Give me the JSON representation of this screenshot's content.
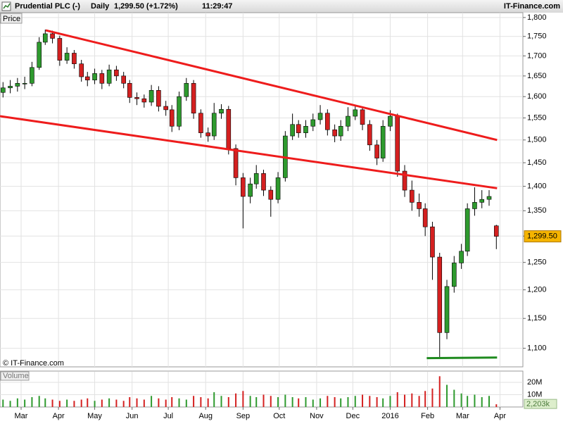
{
  "chart_data": {
    "type": "candlestick",
    "header": {
      "instrument": "Prudential PLC (-)",
      "period": "Daily",
      "quote": "1,299.50 (+1.72%)",
      "time": "11:29:47",
      "source": "IT-Finance.com"
    },
    "price_label": "Price",
    "copyright": "© IT-Finance.com",
    "volume_label": "Volume",
    "last_price_label": "1,299.50",
    "last_volume_label": "2,203k",
    "log_scale": true,
    "grid": true,
    "up_color": "#2e9a2e",
    "down_color": "#d42020",
    "xlim": [
      -17.5,
      416
    ],
    "xticks": [
      {
        "value": 0,
        "label": "Mar"
      },
      {
        "value": 31,
        "label": "Apr"
      },
      {
        "value": 61,
        "label": "May"
      },
      {
        "value": 92,
        "label": "Jun"
      },
      {
        "value": 122,
        "label": "Jul"
      },
      {
        "value": 153,
        "label": "Aug"
      },
      {
        "value": 184,
        "label": "Sep"
      },
      {
        "value": 214,
        "label": "Oct"
      },
      {
        "value": 245,
        "label": "Nov"
      },
      {
        "value": 275,
        "label": "Dec"
      },
      {
        "value": 306,
        "label": "2016"
      },
      {
        "value": 337,
        "label": "Feb"
      },
      {
        "value": 366,
        "label": "Mar"
      },
      {
        "value": 397,
        "label": "Apr"
      }
    ],
    "ylim": [
      1070,
      1813
    ],
    "yticks": [
      {
        "value": 1800,
        "label": "1,800"
      },
      {
        "value": 1750,
        "label": "1,750"
      },
      {
        "value": 1700,
        "label": "1,700"
      },
      {
        "value": 1650,
        "label": "1,650"
      },
      {
        "value": 1600,
        "label": "1,600"
      },
      {
        "value": 1550,
        "label": "1,550"
      },
      {
        "value": 1500,
        "label": "1,500"
      },
      {
        "value": 1450,
        "label": "1,450"
      },
      {
        "value": 1400,
        "label": "1,400"
      },
      {
        "value": 1350,
        "label": "1,350"
      },
      {
        "value": 1300,
        "label": "1,300"
      },
      {
        "value": 1250,
        "label": "1,250"
      },
      {
        "value": 1200,
        "label": "1,200"
      },
      {
        "value": 1150,
        "label": "1,150"
      },
      {
        "value": 1100,
        "label": "1,100"
      }
    ],
    "vlim": [
      0,
      28.6
    ],
    "vticks": [
      {
        "value": 20,
        "label": "20M"
      },
      {
        "value": 10,
        "label": "10M"
      }
    ],
    "x": [
      -15,
      -9,
      -3,
      3,
      9,
      15,
      20,
      26,
      32,
      38,
      44,
      50,
      55,
      61,
      67,
      73,
      79,
      85,
      90,
      96,
      102,
      108,
      114,
      120,
      125,
      131,
      137,
      143,
      149,
      155,
      160,
      166,
      172,
      178,
      184,
      190,
      195,
      201,
      207,
      213,
      219,
      225,
      230,
      236,
      242,
      248,
      254,
      260,
      265,
      271,
      277,
      283,
      289,
      295,
      300,
      306,
      312,
      318,
      324,
      330,
      335,
      341,
      347,
      353,
      359,
      365,
      370,
      376,
      382,
      388,
      394
    ],
    "open": [
      1610,
      1621,
      1625,
      1632,
      1632,
      1671,
      1735,
      1757,
      1745,
      1689,
      1707,
      1680,
      1648,
      1640,
      1656,
      1632,
      1665,
      1650,
      1632,
      1598,
      1595,
      1587,
      1615,
      1577,
      1569,
      1531,
      1600,
      1632,
      1561,
      1516,
      1509,
      1561,
      1570,
      1481,
      1418,
      1379,
      1405,
      1427,
      1392,
      1373,
      1418,
      1509,
      1535,
      1516,
      1531,
      1546,
      1561,
      1523,
      1509,
      1531,
      1554,
      1569,
      1535,
      1489,
      1460,
      1531,
      1554,
      1432,
      1392,
      1367,
      1354,
      1318,
      1260,
      1126,
      1206,
      1249,
      1271,
      1354,
      1367,
      1373,
      1320
    ],
    "high": [
      1635,
      1640,
      1645,
      1648,
      1685,
      1748,
      1768,
      1765,
      1752,
      1722,
      1715,
      1690,
      1660,
      1668,
      1665,
      1678,
      1675,
      1660,
      1640,
      1610,
      1605,
      1628,
      1625,
      1590,
      1580,
      1612,
      1645,
      1640,
      1570,
      1528,
      1585,
      1582,
      1578,
      1490,
      1428,
      1418,
      1445,
      1435,
      1400,
      1430,
      1520,
      1560,
      1545,
      1545,
      1560,
      1580,
      1570,
      1535,
      1545,
      1575,
      1580,
      1575,
      1545,
      1500,
      1545,
      1568,
      1560,
      1445,
      1412,
      1385,
      1365,
      1328,
      1268,
      1218,
      1262,
      1285,
      1365,
      1398,
      1392,
      1392,
      1322
    ],
    "low": [
      1598,
      1608,
      1612,
      1618,
      1625,
      1665,
      1728,
      1732,
      1675,
      1680,
      1668,
      1636,
      1625,
      1630,
      1618,
      1625,
      1638,
      1620,
      1585,
      1580,
      1574,
      1578,
      1565,
      1555,
      1518,
      1522,
      1590,
      1548,
      1505,
      1496,
      1500,
      1548,
      1468,
      1402,
      1315,
      1365,
      1395,
      1380,
      1338,
      1365,
      1410,
      1500,
      1505,
      1505,
      1520,
      1535,
      1510,
      1495,
      1498,
      1520,
      1545,
      1522,
      1476,
      1445,
      1452,
      1520,
      1420,
      1378,
      1350,
      1338,
      1300,
      1218,
      1083,
      1115,
      1195,
      1238,
      1262,
      1340,
      1355,
      1360,
      1275
    ],
    "close": [
      1621,
      1625,
      1632,
      1632,
      1671,
      1735,
      1757,
      1745,
      1689,
      1707,
      1680,
      1648,
      1640,
      1656,
      1632,
      1665,
      1650,
      1632,
      1598,
      1595,
      1587,
      1615,
      1577,
      1569,
      1531,
      1600,
      1632,
      1561,
      1516,
      1509,
      1561,
      1570,
      1481,
      1418,
      1379,
      1405,
      1427,
      1392,
      1373,
      1418,
      1509,
      1535,
      1516,
      1531,
      1546,
      1561,
      1523,
      1509,
      1531,
      1554,
      1569,
      1535,
      1489,
      1460,
      1531,
      1554,
      1432,
      1392,
      1367,
      1354,
      1318,
      1260,
      1126,
      1206,
      1249,
      1271,
      1354,
      1367,
      1373,
      1379,
      1299.5
    ],
    "volume": [
      6,
      5,
      7,
      6,
      8,
      9,
      7,
      6,
      5,
      6,
      5,
      6,
      7,
      5,
      6,
      7,
      6,
      5,
      8,
      7,
      6,
      9,
      7,
      6,
      8,
      7,
      6,
      9,
      8,
      7,
      12,
      9,
      8,
      11,
      13,
      9,
      8,
      10,
      9,
      8,
      10,
      8,
      7,
      8,
      6,
      7,
      9,
      8,
      7,
      8,
      9,
      10,
      9,
      8,
      7,
      9,
      12,
      10,
      11,
      9,
      13,
      15,
      25,
      18,
      14,
      11,
      9,
      10,
      8,
      9,
      2.203
    ],
    "trendlines": [
      {
        "color": "#ee1c1c",
        "x": [
          20.4,
          394.6
        ],
        "y": [
          1766,
          1500
        ]
      },
      {
        "color": "#ee1c1c",
        "x": [
          -17.5,
          394.6
        ],
        "y": [
          1554,
          1396
        ]
      },
      {
        "color": "#1e8a1e",
        "x": [
          336.3,
          394.6
        ],
        "y": [
          1084,
          1085
        ]
      }
    ]
  }
}
